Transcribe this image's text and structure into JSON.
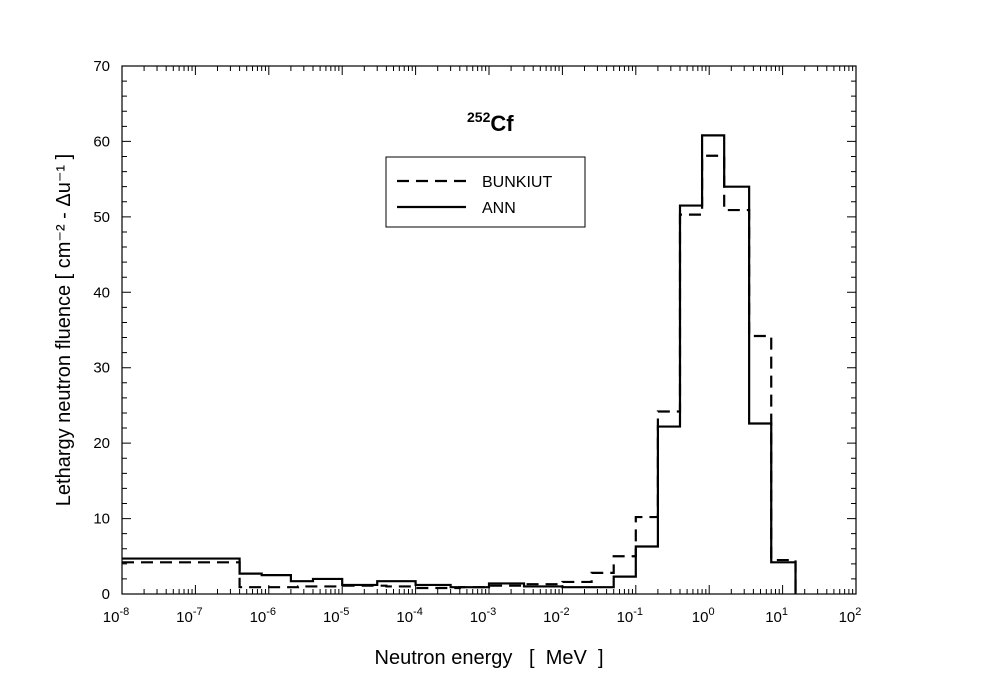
{
  "chart_data": {
    "type": "line",
    "step": true,
    "xscale": "log",
    "xlim": [
      1e-08,
      100
    ],
    "ylim": [
      0,
      70
    ],
    "xlabel": "Neutron energy   [  MeV  ]",
    "ylabel": "Lethargy neutron fluence  [ cm⁻² - Δu⁻¹ ]",
    "annotation": {
      "mass": "252",
      "element": "Cf"
    },
    "x_ticks": [
      {
        "value": 1e-08,
        "base": "10",
        "exp": "-8"
      },
      {
        "value": 1e-07,
        "base": "10",
        "exp": "-7"
      },
      {
        "value": 1e-06,
        "base": "10",
        "exp": "-6"
      },
      {
        "value": 1e-05,
        "base": "10",
        "exp": "-5"
      },
      {
        "value": 0.0001,
        "base": "10",
        "exp": "-4"
      },
      {
        "value": 0.001,
        "base": "10",
        "exp": "-3"
      },
      {
        "value": 0.01,
        "base": "10",
        "exp": "-2"
      },
      {
        "value": 0.1,
        "base": "10",
        "exp": "-1"
      },
      {
        "value": 1,
        "base": "10",
        "exp": "0"
      },
      {
        "value": 10,
        "base": "10",
        "exp": "1"
      },
      {
        "value": 100,
        "base": "10",
        "exp": "2"
      }
    ],
    "y_ticks": [
      "0",
      "10",
      "20",
      "30",
      "40",
      "50",
      "60",
      "70"
    ],
    "legend": {
      "position": "upper-center"
    },
    "series": [
      {
        "name": "BUNKIUT",
        "style": "dashed",
        "color": "#000000",
        "edges": [
          1e-08,
          4e-07,
          1e-06,
          2.5e-06,
          1e-05,
          4e-05,
          0.0001,
          0.0004,
          0.001,
          0.003,
          0.01,
          0.025,
          0.05,
          0.1,
          0.2,
          0.4,
          0.8,
          1.6,
          3.5,
          7,
          15
        ],
        "values": [
          4.2,
          0.9,
          0.9,
          1.0,
          1.1,
          1.0,
          0.8,
          0.9,
          1.1,
          1.3,
          1.6,
          2.8,
          5.0,
          10.2,
          24.2,
          50.3,
          58.1,
          50.9,
          34.2,
          4.5
        ]
      },
      {
        "name": "ANN",
        "style": "solid",
        "color": "#000000",
        "edges": [
          1e-08,
          4e-07,
          8e-07,
          2e-06,
          4e-06,
          1e-05,
          3e-05,
          0.0001,
          0.0003,
          0.001,
          0.003,
          0.01,
          0.05,
          0.1,
          0.2,
          0.4,
          0.8,
          1.6,
          3.5,
          7,
          15
        ],
        "values": [
          4.7,
          2.7,
          2.5,
          1.7,
          2.0,
          1.2,
          1.7,
          1.2,
          0.9,
          1.4,
          1.0,
          0.9,
          2.3,
          6.3,
          22.2,
          51.5,
          60.8,
          54.0,
          22.6,
          4.2
        ]
      }
    ]
  }
}
